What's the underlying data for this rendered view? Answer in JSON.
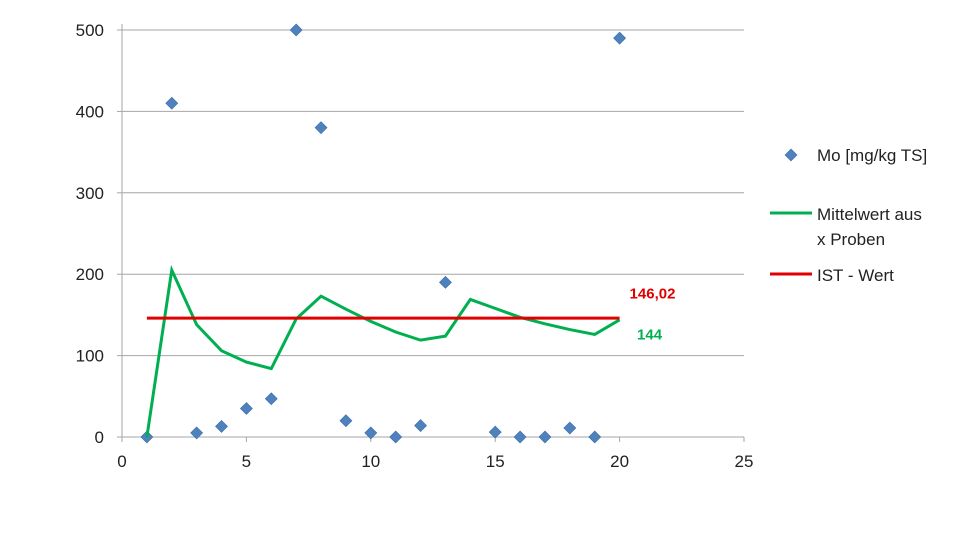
{
  "chart_data": {
    "type": "scatter",
    "xlim": [
      0,
      25
    ],
    "ylim": [
      0,
      500
    ],
    "xticks": [
      0,
      5,
      10,
      15,
      20,
      25
    ],
    "yticks": [
      0,
      100,
      200,
      300,
      400,
      500
    ],
    "grid": {
      "horizontal": true,
      "vertical": false
    },
    "legend_position": "right",
    "series": [
      {
        "name": "Mo [mg/kg TS]",
        "kind": "scatter",
        "marker": "diamond",
        "color": "#4f81bd",
        "x": [
          1,
          2,
          3,
          4,
          5,
          6,
          7,
          8,
          9,
          10,
          11,
          12,
          13,
          15,
          16,
          17,
          18,
          19,
          20
        ],
        "y": [
          0,
          410,
          5,
          13,
          35,
          47,
          500,
          380,
          20,
          5,
          0,
          14,
          190,
          6,
          0,
          0,
          11,
          0,
          490
        ]
      },
      {
        "name_lines": [
          "Mittelwert aus",
          "x Proben"
        ],
        "kind": "line",
        "color": "#00b050",
        "x": [
          1,
          2,
          3,
          4,
          5,
          6,
          7,
          8,
          9,
          10,
          11,
          12,
          13,
          14,
          15,
          16,
          17,
          18,
          19,
          20
        ],
        "y": [
          0,
          205,
          138,
          106,
          92,
          84,
          145,
          173,
          157,
          142,
          129,
          119,
          124,
          169,
          158,
          147,
          139,
          132,
          126,
          144
        ]
      },
      {
        "name": "IST - Wert",
        "kind": "line",
        "color": "#e00000",
        "x": [
          1,
          20
        ],
        "y": [
          146.02,
          146.02
        ]
      }
    ],
    "annotations": [
      {
        "text": "146,02",
        "color": "#e00000",
        "x": 20.4,
        "y": 170
      },
      {
        "text": "144",
        "color": "#00b050",
        "x": 20.7,
        "y": 120
      }
    ]
  }
}
